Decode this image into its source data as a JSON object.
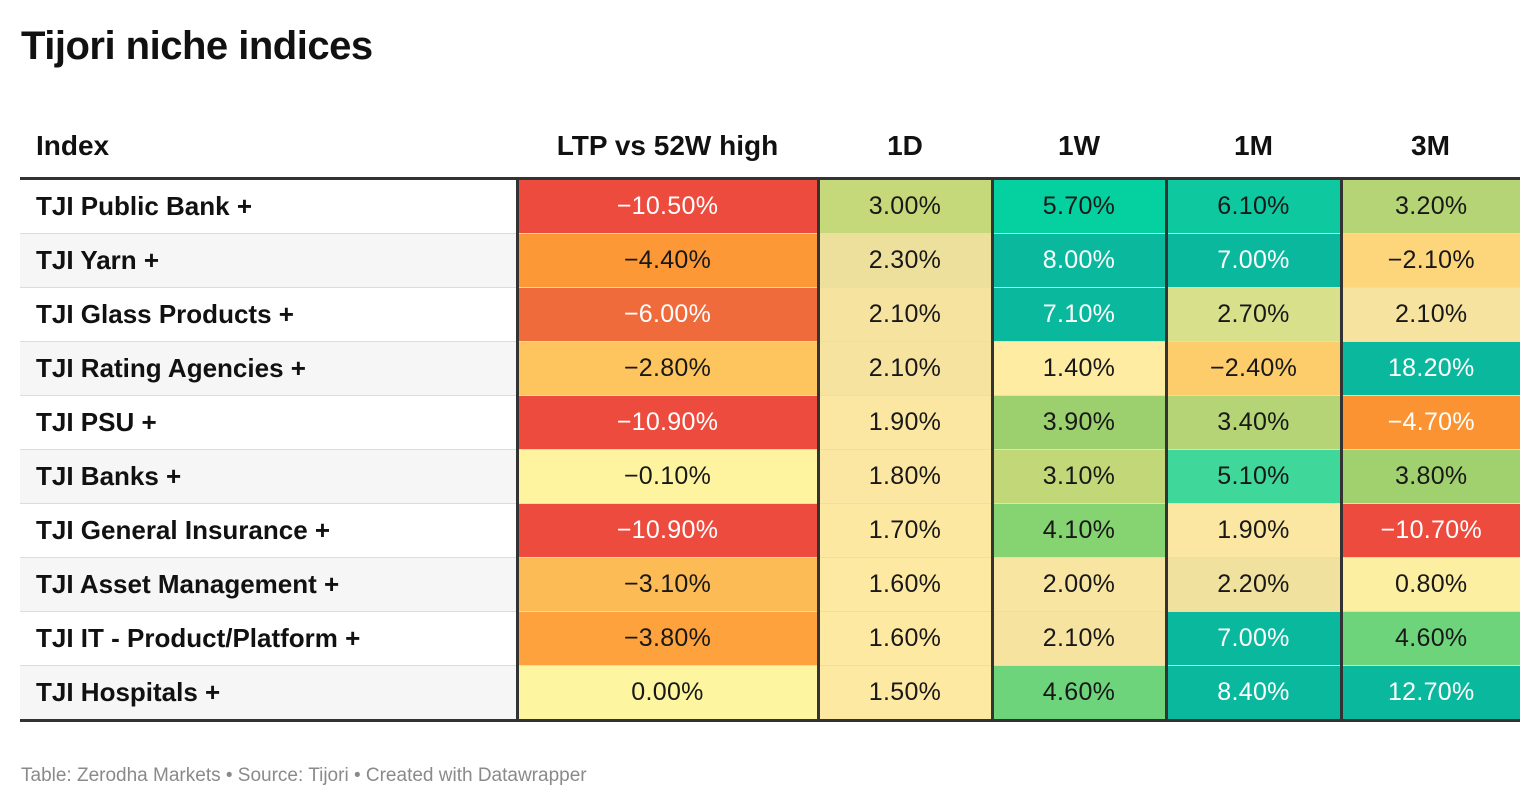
{
  "title": "Tijori niche indices",
  "footer": "Table: Zerodha Markets • Source: Tijori • Created with Datawrapper",
  "chart_data": {
    "type": "table",
    "title": "Tijori niche indices",
    "columns": [
      "Index",
      "LTP vs 52W high",
      "1D",
      "1W",
      "1M",
      "3M"
    ],
    "rows": [
      {
        "index": "TJI Public Bank +",
        "cells": [
          {
            "text": "−10.50%",
            "value": -10.5,
            "bg": "#ed4b3e",
            "fg": "#ffffff"
          },
          {
            "text": "3.00%",
            "value": 3.0,
            "bg": "#c6d97a",
            "fg": "#181818"
          },
          {
            "text": "5.70%",
            "value": 5.7,
            "bg": "#05d09f",
            "fg": "#181818"
          },
          {
            "text": "6.10%",
            "value": 6.1,
            "bg": "#0ec9a0",
            "fg": "#181818"
          },
          {
            "text": "3.20%",
            "value": 3.2,
            "bg": "#b5d476",
            "fg": "#181818"
          }
        ]
      },
      {
        "index": "TJI Yarn +",
        "cells": [
          {
            "text": "−4.40%",
            "value": -4.4,
            "bg": "#fc9936",
            "fg": "#181818"
          },
          {
            "text": "2.30%",
            "value": 2.3,
            "bg": "#eddf9c",
            "fg": "#181818"
          },
          {
            "text": "8.00%",
            "value": 8.0,
            "bg": "#0ab89d",
            "fg": "#ffffff"
          },
          {
            "text": "7.00%",
            "value": 7.0,
            "bg": "#0ab89d",
            "fg": "#ffffff"
          },
          {
            "text": "−2.10%",
            "value": -2.1,
            "bg": "#fdd67c",
            "fg": "#181818"
          }
        ]
      },
      {
        "index": "TJI Glass Products +",
        "cells": [
          {
            "text": "−6.00%",
            "value": -6.0,
            "bg": "#f06b3c",
            "fg": "#ffffff"
          },
          {
            "text": "2.10%",
            "value": 2.1,
            "bg": "#f6e3a0",
            "fg": "#181818"
          },
          {
            "text": "7.10%",
            "value": 7.1,
            "bg": "#0ab89d",
            "fg": "#ffffff"
          },
          {
            "text": "2.70%",
            "value": 2.7,
            "bg": "#d8e08c",
            "fg": "#181818"
          },
          {
            "text": "2.10%",
            "value": 2.1,
            "bg": "#f6e3a0",
            "fg": "#181818"
          }
        ]
      },
      {
        "index": "TJI Rating Agencies +",
        "cells": [
          {
            "text": "−2.80%",
            "value": -2.8,
            "bg": "#fec45e",
            "fg": "#181818"
          },
          {
            "text": "2.10%",
            "value": 2.1,
            "bg": "#f6e3a0",
            "fg": "#181818"
          },
          {
            "text": "1.40%",
            "value": 1.4,
            "bg": "#fdeca2",
            "fg": "#181818"
          },
          {
            "text": "−2.40%",
            "value": -2.4,
            "bg": "#fdcd6c",
            "fg": "#181818"
          },
          {
            "text": "18.20%",
            "value": 18.2,
            "bg": "#0ab89d",
            "fg": "#ffffff"
          }
        ]
      },
      {
        "index": "TJI PSU +",
        "cells": [
          {
            "text": "−10.90%",
            "value": -10.9,
            "bg": "#ed4b3e",
            "fg": "#ffffff"
          },
          {
            "text": "1.90%",
            "value": 1.9,
            "bg": "#fbe7a2",
            "fg": "#181818"
          },
          {
            "text": "3.90%",
            "value": 3.9,
            "bg": "#9ccf6e",
            "fg": "#181818"
          },
          {
            "text": "3.40%",
            "value": 3.4,
            "bg": "#b4d475",
            "fg": "#181818"
          },
          {
            "text": "−4.70%",
            "value": -4.7,
            "bg": "#fb9332",
            "fg": "#ffffff"
          }
        ]
      },
      {
        "index": "TJI Banks +",
        "cells": [
          {
            "text": "−0.10%",
            "value": -0.1,
            "bg": "#fef49f",
            "fg": "#181818"
          },
          {
            "text": "1.80%",
            "value": 1.8,
            "bg": "#fbe7a2",
            "fg": "#181818"
          },
          {
            "text": "3.10%",
            "value": 3.1,
            "bg": "#c1d778",
            "fg": "#181818"
          },
          {
            "text": "5.10%",
            "value": 5.1,
            "bg": "#3fd79a",
            "fg": "#181818"
          },
          {
            "text": "3.80%",
            "value": 3.8,
            "bg": "#a0d16e",
            "fg": "#181818"
          }
        ]
      },
      {
        "index": "TJI General Insurance +",
        "cells": [
          {
            "text": "−10.90%",
            "value": -10.9,
            "bg": "#ed4b3e",
            "fg": "#ffffff"
          },
          {
            "text": "1.70%",
            "value": 1.7,
            "bg": "#fde8a2",
            "fg": "#181818"
          },
          {
            "text": "4.10%",
            "value": 4.1,
            "bg": "#86d372",
            "fg": "#181818"
          },
          {
            "text": "1.90%",
            "value": 1.9,
            "bg": "#fbe7a2",
            "fg": "#181818"
          },
          {
            "text": "−10.70%",
            "value": -10.7,
            "bg": "#ed4b3e",
            "fg": "#ffffff"
          }
        ]
      },
      {
        "index": "TJI Asset Management +",
        "cells": [
          {
            "text": "−3.10%",
            "value": -3.1,
            "bg": "#fdbb56",
            "fg": "#181818"
          },
          {
            "text": "1.60%",
            "value": 1.6,
            "bg": "#fde9a2",
            "fg": "#181818"
          },
          {
            "text": "2.00%",
            "value": 2.0,
            "bg": "#f8e5a1",
            "fg": "#181818"
          },
          {
            "text": "2.20%",
            "value": 2.2,
            "bg": "#f1e19e",
            "fg": "#181818"
          },
          {
            "text": "0.80%",
            "value": 0.8,
            "bg": "#fdefa2",
            "fg": "#181818"
          }
        ]
      },
      {
        "index": "TJI IT - Product/Platform +",
        "cells": [
          {
            "text": "−3.80%",
            "value": -3.8,
            "bg": "#fda23c",
            "fg": "#181818"
          },
          {
            "text": "1.60%",
            "value": 1.6,
            "bg": "#fde9a2",
            "fg": "#181818"
          },
          {
            "text": "2.10%",
            "value": 2.1,
            "bg": "#f6e3a0",
            "fg": "#181818"
          },
          {
            "text": "7.00%",
            "value": 7.0,
            "bg": "#0ab89d",
            "fg": "#ffffff"
          },
          {
            "text": "4.60%",
            "value": 4.6,
            "bg": "#6dd47c",
            "fg": "#181818"
          }
        ]
      },
      {
        "index": "TJI Hospitals +",
        "cells": [
          {
            "text": "0.00%",
            "value": 0.0,
            "bg": "#fef5a0",
            "fg": "#181818"
          },
          {
            "text": "1.50%",
            "value": 1.5,
            "bg": "#fde9a2",
            "fg": "#181818"
          },
          {
            "text": "4.60%",
            "value": 4.6,
            "bg": "#6dd47c",
            "fg": "#181818"
          },
          {
            "text": "8.40%",
            "value": 8.4,
            "bg": "#0ab89d",
            "fg": "#ffffff"
          },
          {
            "text": "12.70%",
            "value": 12.7,
            "bg": "#0ab89d",
            "fg": "#ffffff"
          }
        ]
      }
    ]
  }
}
